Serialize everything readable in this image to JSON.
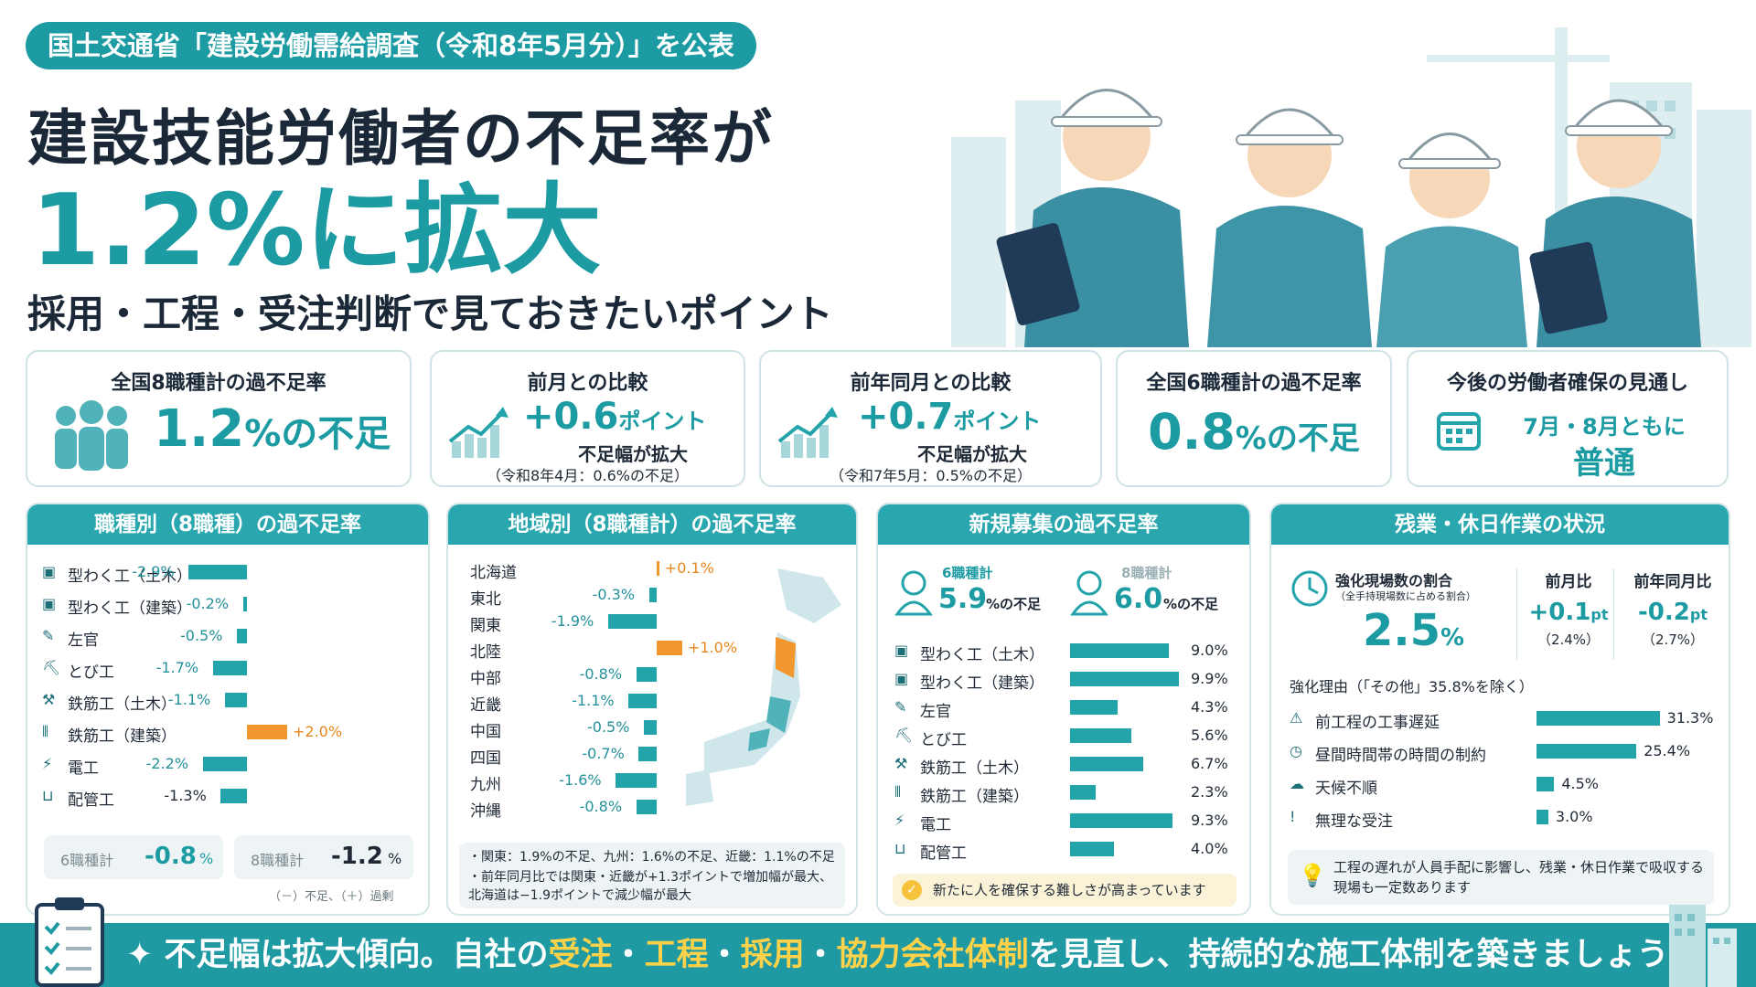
{
  "header": {
    "tag": "国土交通省「建設労働需給調査（令和8年5月分）」を公表",
    "title1": "建設技能労働者の不足率が",
    "title2": "1.2%に拡大",
    "subtitle": "採用・工程・受注判断で見ておきたいポイント"
  },
  "kpis": [
    {
      "title": "全国8職種計の過不足率",
      "value": "1.2",
      "unit": "%の不足",
      "icon": "people-icon"
    },
    {
      "title": "前月との比較",
      "value": "+0.6",
      "unit": "ポイント",
      "sub": "不足幅が拡大",
      "note": "（令和8年4月：0.6%の不足）",
      "icon": "trend-up-icon"
    },
    {
      "title": "前年同月との比較",
      "value": "+0.7",
      "unit": "ポイント",
      "sub": "不足幅が拡大",
      "note": "（令和7年5月：0.5%の不足）",
      "icon": "trend-up-icon"
    },
    {
      "title": "全国6職種計の過不足率",
      "value": "0.8",
      "unit": "%の不足"
    },
    {
      "title": "今後の労働者確保の見通し",
      "line1": "7月・8月ともに",
      "line2": "普通",
      "icon": "calendar-icon"
    }
  ],
  "colors": {
    "teal": "#1c9ba3",
    "orange": "#f2962e",
    "footer": "#1f9aa3",
    "highlight": "#ffd24a"
  },
  "chart_data": [
    {
      "type": "bar",
      "title": "職種別（8職種）の過不足率",
      "categories": [
        "型わく工（土木）",
        "型わく工（建築）",
        "左官",
        "とび工",
        "鉄筋工（土木）",
        "鉄筋工（建築）",
        "電工",
        "配管工"
      ],
      "series": [
        {
          "values": [
            -2.9,
            -0.2,
            -0.5,
            -1.7,
            -1.1,
            2.0,
            -2.2,
            -1.3
          ]
        }
      ],
      "labels": [
        "-2.9%",
        "-0.2%",
        "-0.5%",
        "-1.7%",
        "-1.1%",
        "+2.0%",
        "-2.2%",
        "-1.3%"
      ],
      "summary": [
        {
          "label": "6職種計",
          "value": "-0.8",
          "unit": "%"
        },
        {
          "label": "8職種計",
          "value": "-1.2",
          "unit": "%"
        }
      ],
      "footnote": "（－）不足、（＋）過剰"
    },
    {
      "type": "bar",
      "title": "地域別（8職種計）の過不足率",
      "categories": [
        "北海道",
        "東北",
        "関東",
        "北陸",
        "中部",
        "近畿",
        "中国",
        "四国",
        "九州",
        "沖縄"
      ],
      "series": [
        {
          "values": [
            0.1,
            -0.3,
            -1.9,
            1.0,
            -0.8,
            -1.1,
            -0.5,
            -0.7,
            -1.6,
            -0.8
          ]
        }
      ],
      "labels": [
        "+0.1%",
        "-0.3%",
        "-1.9%",
        "+1.0%",
        "-0.8%",
        "-1.1%",
        "-0.5%",
        "-0.7%",
        "-1.6%",
        "-0.8%"
      ],
      "notes": [
        "関東：1.9%の不足、九州：1.6%の不足、近畿：1.1%の不足",
        "前年同月比では関東・近畿が+1.3ポイントで増加幅が最大、北海道は−1.9ポイントで減少幅が最大"
      ]
    },
    {
      "type": "bar",
      "title": "新規募集の過不足率",
      "categories": [
        "型わく工（土木）",
        "型わく工（建築）",
        "左官",
        "とび工",
        "鉄筋工（土木）",
        "鉄筋工（建築）",
        "電工",
        "配管工"
      ],
      "series": [
        {
          "values": [
            9.0,
            9.9,
            4.3,
            5.6,
            6.7,
            2.3,
            9.3,
            4.0
          ]
        }
      ],
      "labels": [
        "9.0%",
        "9.9%",
        "4.3%",
        "5.6%",
        "6.7%",
        "2.3%",
        "9.3%",
        "4.0%"
      ],
      "summary": [
        {
          "label": "6職種計",
          "value": "5.9",
          "unit": "%の不足"
        },
        {
          "label": "8職種計",
          "value": "6.0",
          "unit": "%の不足"
        }
      ],
      "note": "新たに人を確保する難しさが高まっています"
    },
    {
      "type": "bar",
      "title": "残業・休日作業の状況",
      "kpi": {
        "label": "強化現場数の割合",
        "sublabel": "（全手持現場数に占める割合）",
        "value": "2.5",
        "unit": "%",
        "mom_label": "前月比",
        "mom": "+0.1",
        "mom_unit": "pt",
        "mom_prev": "（2.4%）",
        "yoy_label": "前年同月比",
        "yoy": "-0.2",
        "yoy_unit": "pt",
        "yoy_prev": "（2.7%）"
      },
      "reason_title": "強化理由（「その他」35.8%を除く）",
      "categories": [
        "前工程の工事遅延",
        "昼間時間帯の時間の制約",
        "天候不順",
        "無理な受注"
      ],
      "series": [
        {
          "values": [
            31.3,
            25.4,
            4.5,
            3.0
          ]
        }
      ],
      "labels": [
        "31.3%",
        "25.4%",
        "4.5%",
        "3.0%"
      ],
      "note": "工程の遅れが人員手配に影響し、残業・休日作業で吸収する現場も一定数あります"
    }
  ],
  "footer": {
    "pre": "不足幅は拡大傾向。自社の",
    "k1": "受注",
    "sep1": "・",
    "k2": "工程",
    "sep2": "・",
    "k3": "採用",
    "sep3": "・",
    "k4": "協力会社体制",
    "post": "を見直し、持続的な施工体制を築きましょう！"
  }
}
